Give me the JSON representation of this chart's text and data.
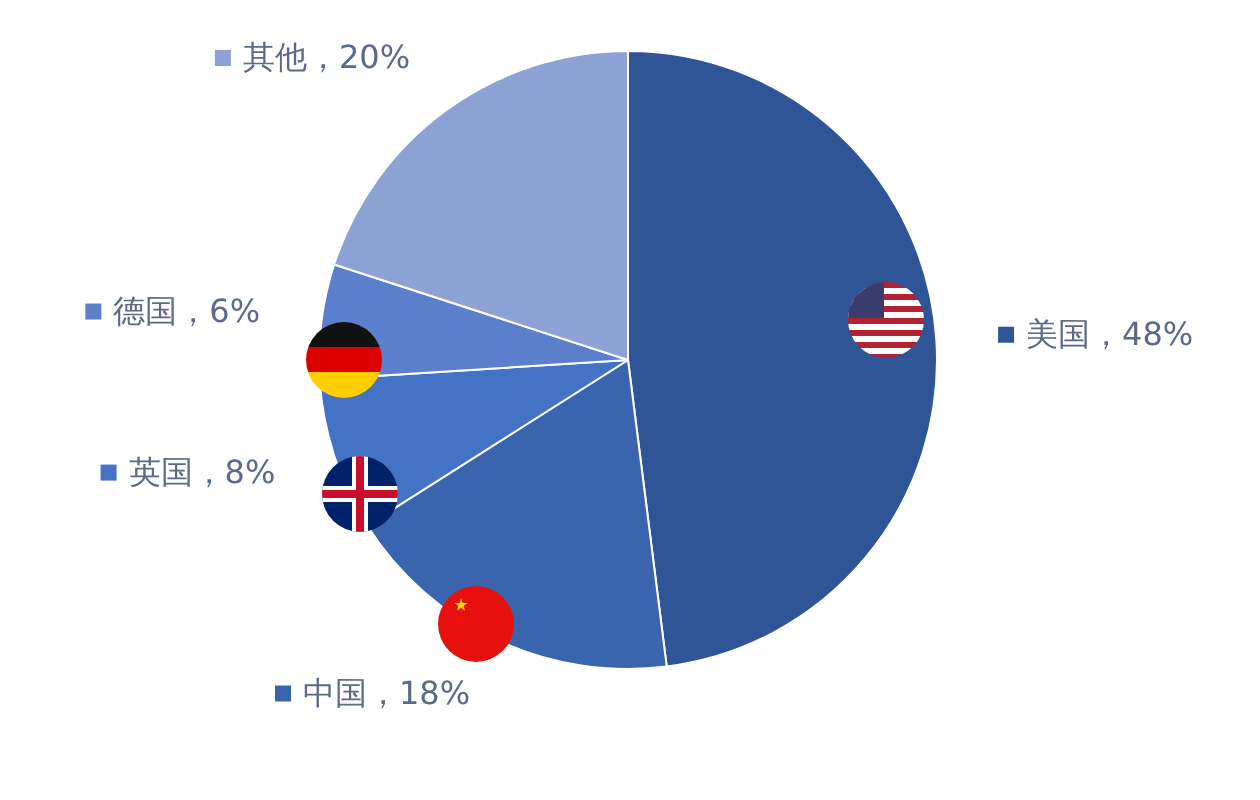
{
  "chart_data": {
    "type": "pie",
    "categories": [
      "美国",
      "中国",
      "英国",
      "德国",
      "其他"
    ],
    "values": [
      48,
      18,
      8,
      6,
      20
    ],
    "colors": [
      "#2f5597",
      "#3a64ad",
      "#4472c4",
      "#5b7fcb",
      "#8da2d4"
    ],
    "value_labels": [
      "48%",
      "18%",
      "8%",
      "6%",
      "20%"
    ],
    "legend": "left"
  }
}
